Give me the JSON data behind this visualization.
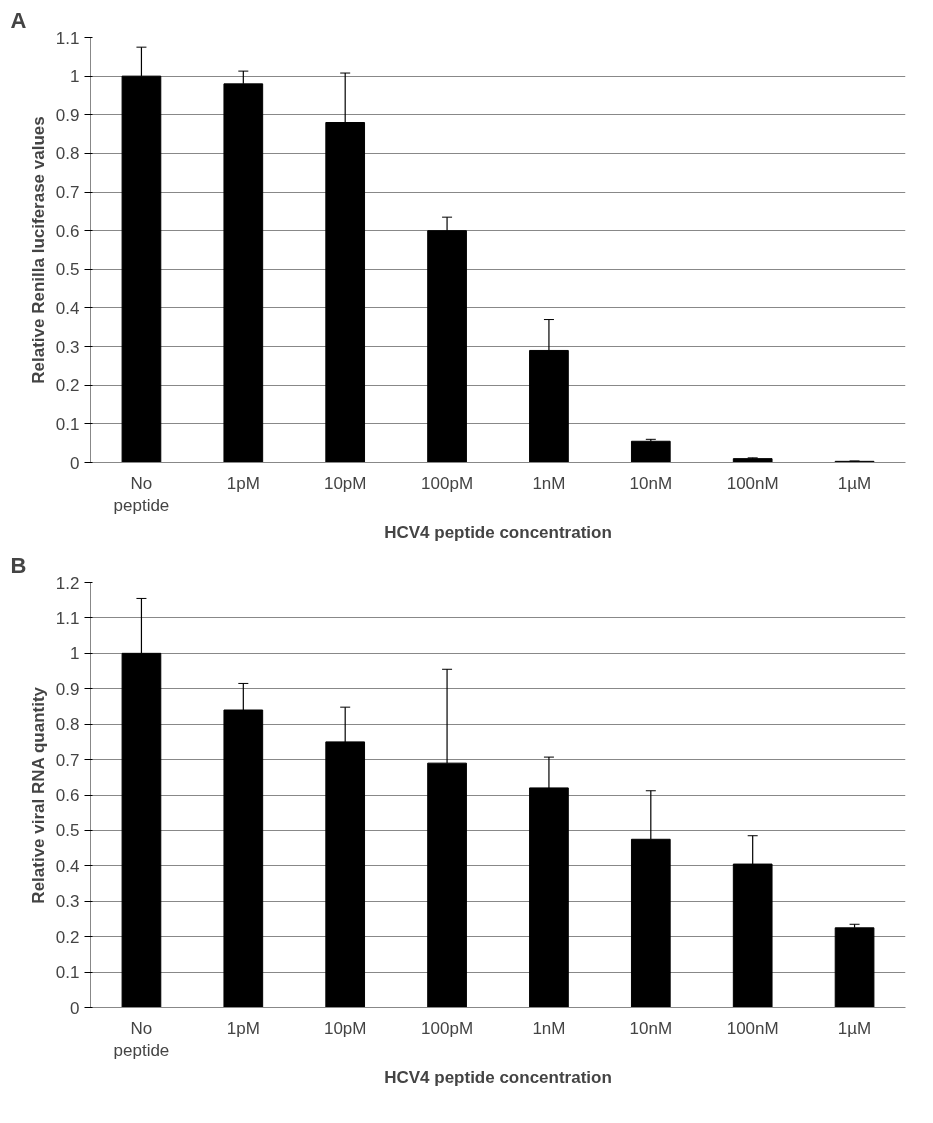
{
  "chart_data": [
    {
      "type": "bar",
      "annotations": [
        "A"
      ],
      "xlabel": "HCV4 peptide concentration",
      "ylabel": "Relative Renilla luciferase values",
      "categories": [
        "No peptide",
        "1pM",
        "10pM",
        "100pM",
        "1nM",
        "10nM",
        "100nM",
        "1µM"
      ],
      "values": [
        1.0,
        0.98,
        0.88,
        0.6,
        0.29,
        0.055,
        0.01,
        0.003
      ],
      "color": "#000000",
      "errors": [
        [
          1.0,
          1.075
        ],
        [
          0.98,
          1.013
        ],
        [
          0.88,
          1.008
        ],
        [
          0.6,
          0.635
        ],
        [
          0.29,
          0.37
        ],
        [
          0.055,
          0.06
        ],
        [
          0.01,
          0.012
        ],
        [
          0.003,
          0.004
        ]
      ],
      "ylim": [
        0,
        1.1
      ],
      "yticks": [
        0,
        0.1,
        0.2,
        0.3,
        0.4,
        0.5,
        0.6,
        0.7,
        0.8,
        0.9,
        1,
        1.1
      ],
      "grid": "y"
    },
    {
      "type": "bar",
      "annotations": [
        "B"
      ],
      "xlabel": "HCV4 peptide concentration",
      "ylabel": "Relative viral RNA quantity",
      "categories": [
        "No peptide",
        "1pM",
        "10pM",
        "100pM",
        "1nM",
        "10nM",
        "100nM",
        "1µM"
      ],
      "values": [
        1.0,
        0.84,
        0.75,
        0.69,
        0.62,
        0.475,
        0.405,
        0.225
      ],
      "color": "#000000",
      "errors": [
        [
          1.0,
          1.155
        ],
        [
          0.84,
          0.915
        ],
        [
          0.75,
          0.848
        ],
        [
          0.69,
          0.955
        ],
        [
          0.62,
          0.707
        ],
        [
          0.475,
          0.612
        ],
        [
          0.405,
          0.485
        ],
        [
          0.225,
          0.235
        ]
      ],
      "ylim": [
        0,
        1.2
      ],
      "yticks": [
        0,
        0.1,
        0.2,
        0.3,
        0.4,
        0.5,
        0.6,
        0.7,
        0.8,
        0.9,
        1,
        1.1,
        1.2
      ],
      "grid": "y"
    }
  ]
}
